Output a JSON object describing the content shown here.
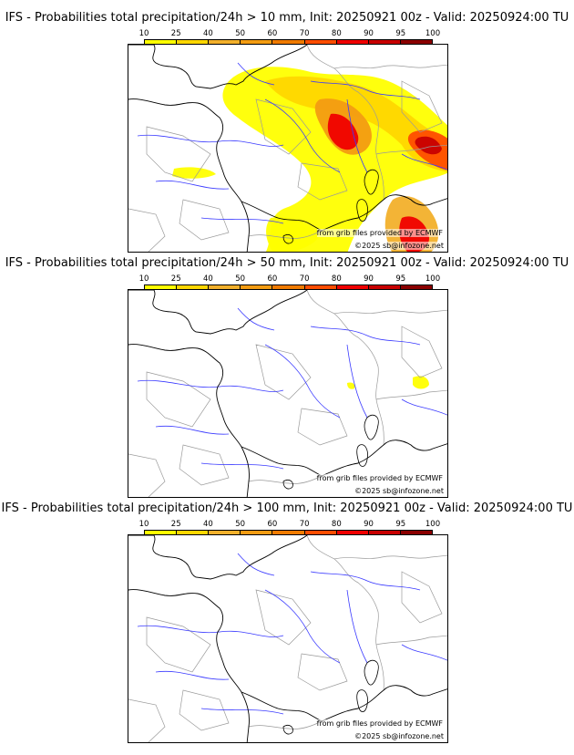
{
  "legend": {
    "levels": [
      "10",
      "25",
      "40",
      "50",
      "60",
      "70",
      "80",
      "90",
      "95",
      "100"
    ],
    "colors": [
      "#ffff00",
      "#ffd700",
      "#f2b02b",
      "#f39c12",
      "#f07b00",
      "#ff4d00",
      "#f00000",
      "#c80000",
      "#8b0000",
      "#4d0000"
    ]
  },
  "colors": {
    "river": "#3a3aff",
    "border": "#9a9a9a",
    "coast": "#000000"
  },
  "panels": [
    {
      "title": "IFS - Probabilities total precipitation/24h > 10 mm, Init: 20250921 00z - Valid: 20250924:00 TU",
      "source": "from grib files provided by ECMWF",
      "copyright": "©2025 sb@infozone.net",
      "precip": "heavy"
    },
    {
      "title": "IFS - Probabilities total precipitation/24h > 50 mm, Init: 20250921 00z - Valid: 20250924:00 TU",
      "source": "from grib files provided by ECMWF",
      "copyright": "©2025 sb@infozone.net",
      "precip": "light"
    },
    {
      "title": "IFS - Probabilities total precipitation/24h > 100 mm, Init: 20250921 00z - Valid: 20250924:00 TU",
      "source": "from grib files provided by ECMWF",
      "copyright": "©2025 sb@infozone.net",
      "precip": "none"
    }
  ]
}
